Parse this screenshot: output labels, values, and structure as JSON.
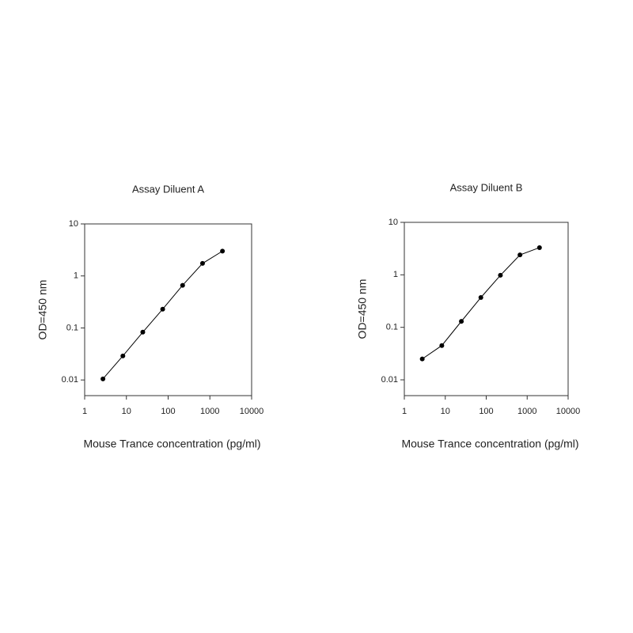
{
  "chart_data": [
    {
      "type": "line",
      "title": "Assay Diluent A",
      "x_label": "Mouse Trance concentration (pg/ml)",
      "y_label": "OD=450 nm",
      "log_x": true,
      "log_y": true,
      "color": "#000000",
      "x": [
        2.74,
        8.23,
        24.7,
        74,
        222,
        667,
        2000
      ],
      "values": [
        0.0105,
        0.029,
        0.083,
        0.23,
        0.66,
        1.74,
        3.0
      ],
      "xlim": [
        1,
        10000
      ],
      "xticks": [
        1,
        10,
        100,
        1000,
        10000
      ],
      "ylim": [
        0.005,
        10
      ],
      "yticks": [
        0.01,
        0.1,
        1,
        10
      ]
    },
    {
      "type": "line",
      "title": "Assay Diluent B",
      "x_label": "Mouse Trance concentration (pg/ml)",
      "y_label": "OD=450 nm",
      "log_x": true,
      "log_y": true,
      "color": "#000000",
      "x": [
        2.74,
        8.23,
        24.7,
        74,
        222,
        667,
        2000
      ],
      "values": [
        0.025,
        0.045,
        0.13,
        0.37,
        0.98,
        2.4,
        3.3
      ],
      "xlim": [
        1,
        10000
      ],
      "xticks": [
        1,
        10,
        100,
        1000,
        10000
      ],
      "ylim": [
        0.005,
        10
      ],
      "yticks": [
        0.01,
        0.1,
        1,
        10
      ]
    }
  ]
}
